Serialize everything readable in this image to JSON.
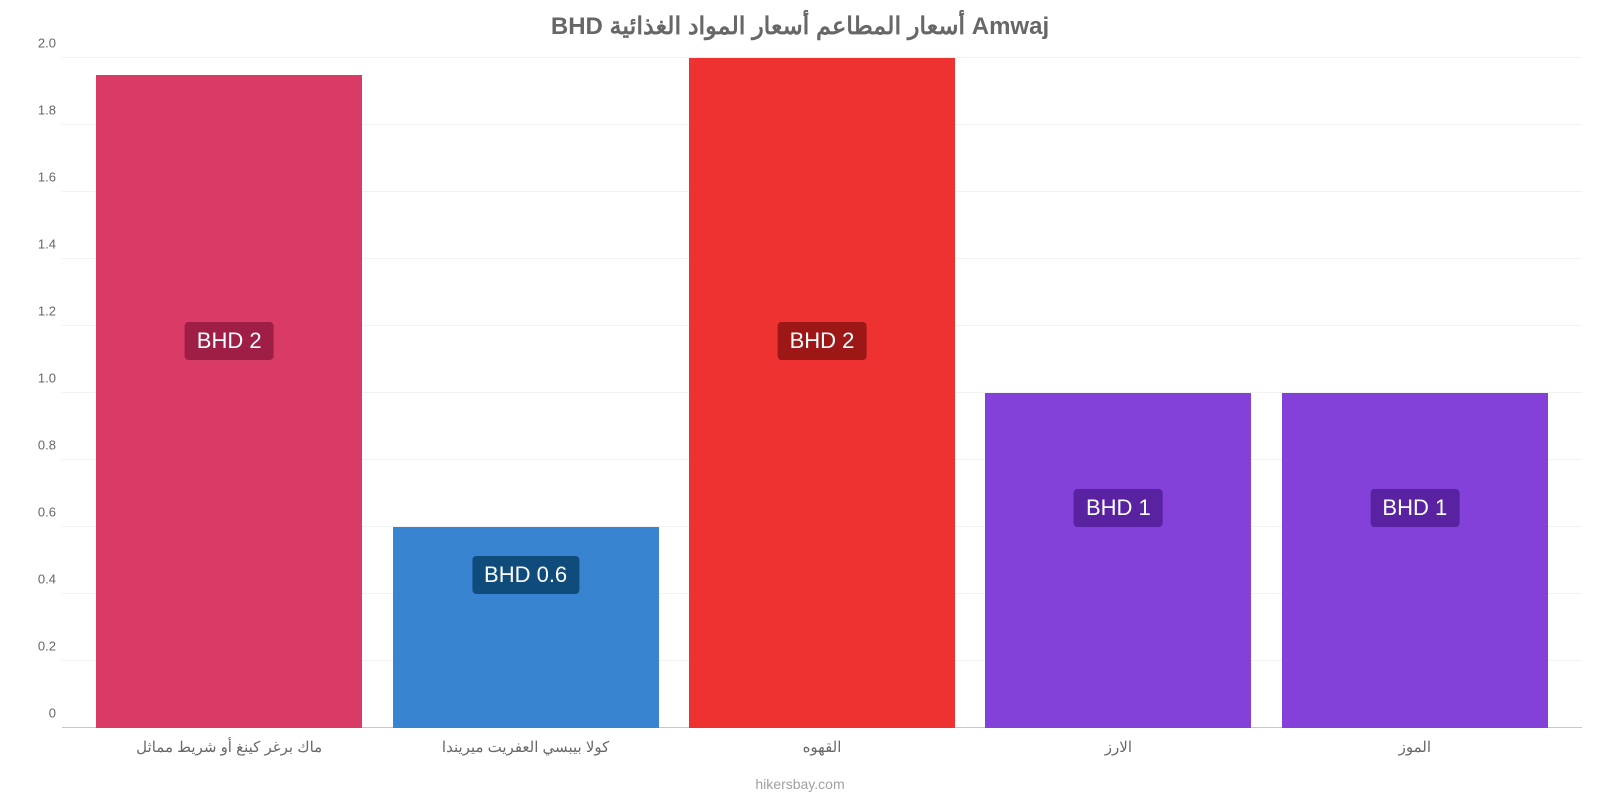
{
  "chart": {
    "type": "bar",
    "title": "BHD أسعار المطاعم أسعار المواد الغذائية Amwaj",
    "title_color": "#676768",
    "title_fontsize": 24,
    "background_color": "#ffffff",
    "grid_color": "#f2f2f2",
    "baseline_color": "#c7c7c7",
    "tick_color": "#676768",
    "tick_fontsize": 13,
    "xlabel_fontsize": 15,
    "yaxis": {
      "min": 0,
      "max": 2.0,
      "ticks": [
        "0",
        "0.2",
        "0.4",
        "0.6",
        "0.8",
        "1.0",
        "1.2",
        "1.4",
        "1.6",
        "1.8",
        "2.0"
      ]
    },
    "bar_width_pct": 17.5,
    "bar_gap_pct": 2.0,
    "bars": [
      {
        "category": "ماك برغر كينغ أو شريط مماثل",
        "value": 1.95,
        "label": "BHD 2",
        "fill_color": "#da3a66",
        "label_bg": "#9e1e45",
        "label_y_offset_pct": 55
      },
      {
        "category": "كولا بيبسي العفريت ميريندا",
        "value": 0.6,
        "label": "BHD 0.6",
        "fill_color": "#3884d0",
        "label_bg": "#0f4c7b",
        "label_y_offset_pct": 20
      },
      {
        "category": "القهوه",
        "value": 2.0,
        "label": "BHD 2",
        "fill_color": "#ee3131",
        "label_bg": "#9d1717",
        "label_y_offset_pct": 55
      },
      {
        "category": "الارز",
        "value": 1.0,
        "label": "BHD 1",
        "fill_color": "#8341d9",
        "label_bg": "#5822a0",
        "label_y_offset_pct": 30
      },
      {
        "category": "الموز",
        "value": 1.0,
        "label": "BHD 1",
        "fill_color": "#8341d9",
        "label_bg": "#5822a0",
        "label_y_offset_pct": 30
      }
    ],
    "bar_label_fontsize": 22,
    "bar_label_color": "#ffffff",
    "footer": "hikersbay.com",
    "footer_color": "#a1a1a1"
  }
}
